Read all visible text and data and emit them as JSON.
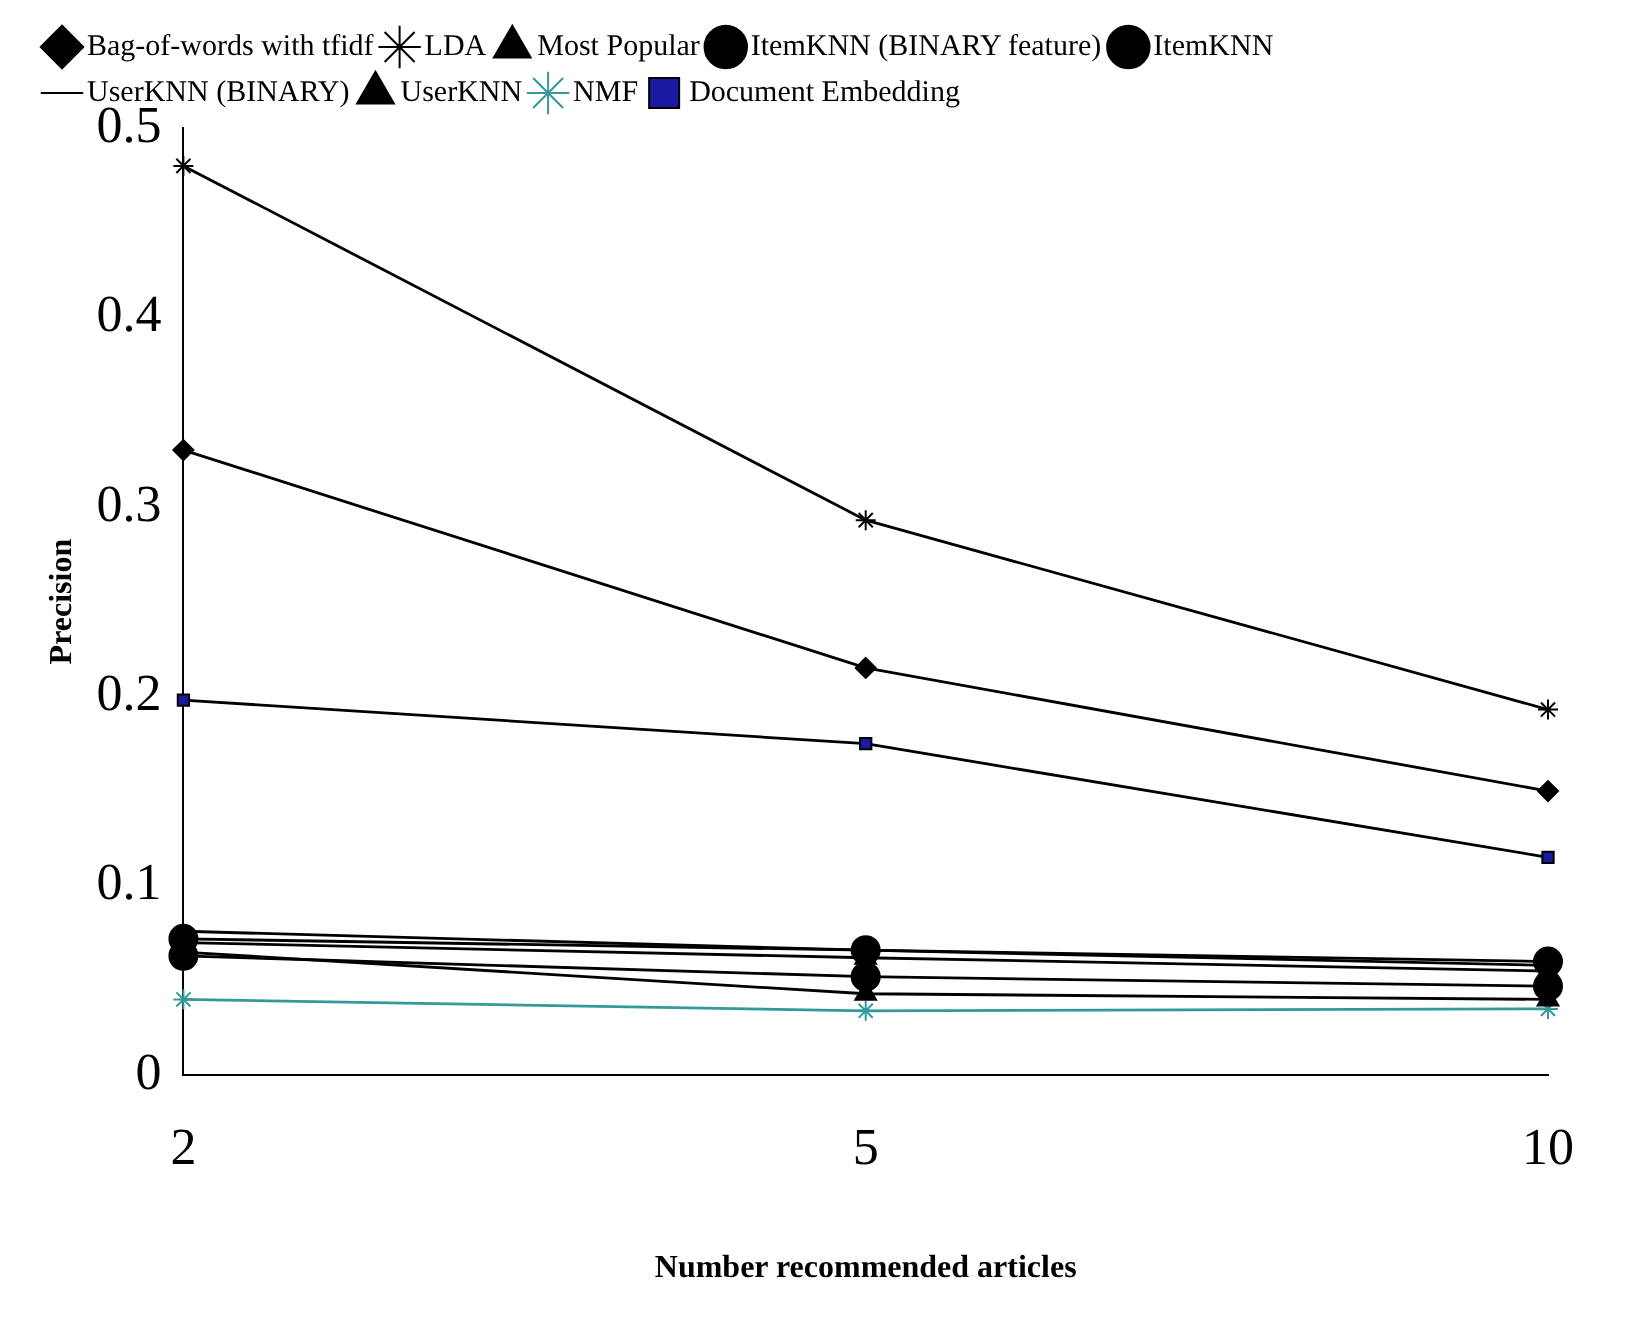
{
  "chart_data": {
    "type": "line",
    "xlabel": "Number recommended articles",
    "ylabel": "Precision",
    "categories": [
      "2",
      "5",
      "10"
    ],
    "ylim": [
      0,
      0.5
    ],
    "yticks": [
      0,
      0.1,
      0.2,
      0.3,
      0.4,
      0.5
    ],
    "grid": false,
    "legend": "top",
    "series": [
      {
        "name": "Bag-of-words with tfidf",
        "color": "#000000",
        "marker": "diamond",
        "values": [
          0.33,
          0.215,
          0.15
        ]
      },
      {
        "name": "LDA",
        "color": "#000000",
        "marker": "cross",
        "values": [
          0.48,
          0.293,
          0.193
        ]
      },
      {
        "name": "Most Popular",
        "color": "#000000",
        "marker": "triangle",
        "values": [
          0.065,
          0.043,
          0.04
        ]
      },
      {
        "name": "ItemKNN (BINARY feature)",
        "color": "#000000",
        "marker": "circle",
        "values": [
          0.072,
          0.066,
          0.06
        ]
      },
      {
        "name": "ItemKNN",
        "color": "#000000",
        "marker": "circle",
        "values": [
          0.063,
          0.052,
          0.047
        ]
      },
      {
        "name": "UserKNN (BINARY)",
        "color": "#000000",
        "marker": "none",
        "values": [
          0.076,
          0.066,
          0.058
        ]
      },
      {
        "name": "UserKNN",
        "color": "#000000",
        "marker": "triangle",
        "values": [
          0.07,
          0.062,
          0.055
        ]
      },
      {
        "name": "NMF",
        "color": "#339999",
        "marker": "cross",
        "values": [
          0.04,
          0.034,
          0.035
        ]
      },
      {
        "name": "Document Embedding",
        "color": "#1a1aa0",
        "marker": "square",
        "values": [
          0.198,
          0.175,
          0.115
        ]
      }
    ]
  }
}
